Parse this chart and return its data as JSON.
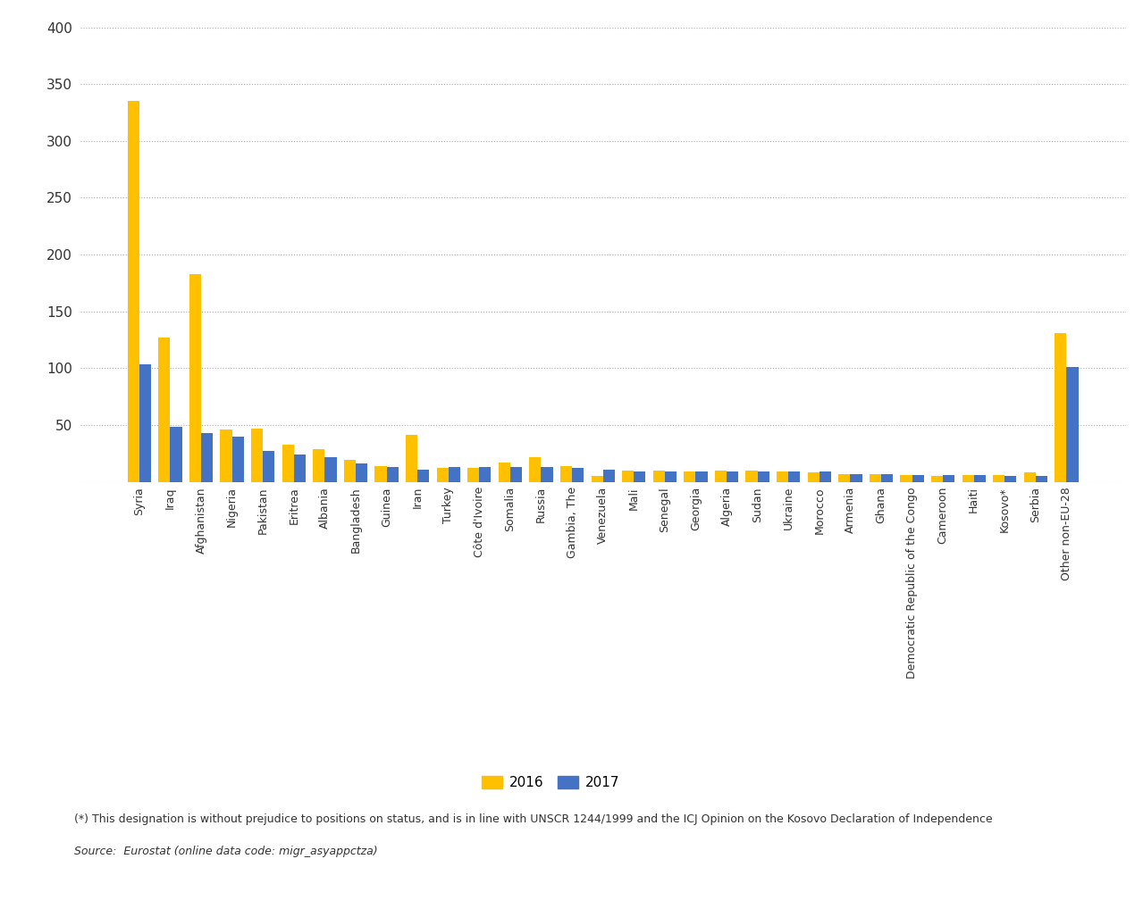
{
  "categories": [
    "Syria",
    "Iraq",
    "Afghanistan",
    "Nigeria",
    "Pakistan",
    "Eritrea",
    "Albania",
    "Bangladesh",
    "Guinea",
    "Iran",
    "Turkey",
    "Côte d'Ivoire",
    "Somalia",
    "Russia",
    "Gambia, The",
    "Venezuela",
    "Mali",
    "Senegal",
    "Georgia",
    "Algeria",
    "Sudan",
    "Ukraine",
    "Morocco",
    "Armenia",
    "Ghana",
    "Democratic Republic of the Congo",
    "Cameroon",
    "Haiti",
    "Kosovo*",
    "Serbia",
    "Other non-EU-28"
  ],
  "values_2016": [
    335,
    127,
    183,
    46,
    47,
    33,
    29,
    19,
    14,
    41,
    12,
    12,
    17,
    22,
    14,
    5,
    10,
    10,
    9,
    10,
    10,
    9,
    8,
    7,
    7,
    6,
    5,
    6,
    6,
    8,
    131
  ],
  "values_2017": [
    103,
    48,
    43,
    40,
    27,
    24,
    22,
    16,
    13,
    11,
    13,
    13,
    13,
    13,
    12,
    11,
    9,
    9,
    9,
    9,
    9,
    9,
    9,
    7,
    7,
    6,
    6,
    6,
    5,
    5,
    101
  ],
  "color_2016": "#FFC000",
  "color_2017": "#4472C4",
  "ylim": [
    0,
    400
  ],
  "yticks": [
    0,
    50,
    100,
    150,
    200,
    250,
    300,
    350,
    400
  ],
  "footnote": "(*) This designation is without prejudice to positions on status, and is in line with UNSCR 1244/1999 and the ICJ Opinion on the Kosovo Declaration of Independence",
  "source": "Source:  Eurostat (online data code: migr_asyappctza)",
  "bar_width": 0.38,
  "figsize": [
    12.79,
    10.18
  ],
  "dpi": 100
}
